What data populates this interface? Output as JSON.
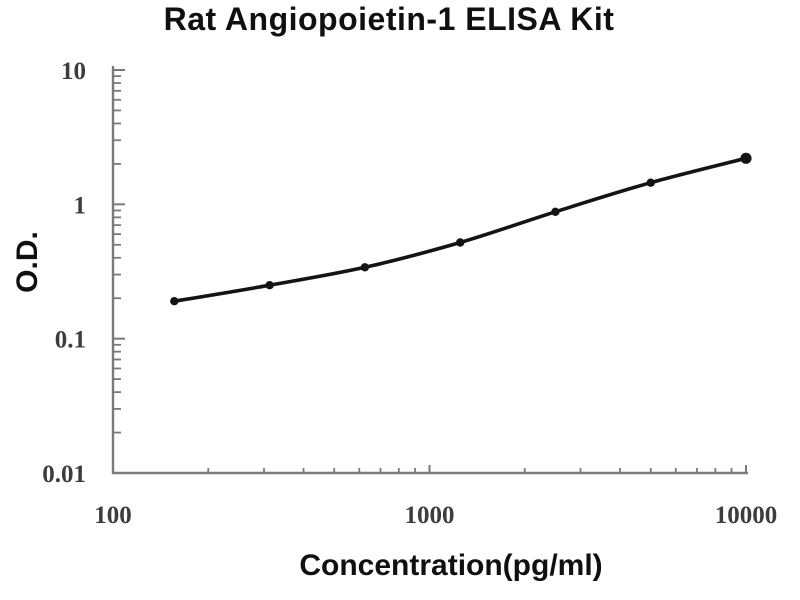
{
  "chart_data": {
    "type": "line",
    "title": "Rat Angiopoietin-1 ELISA Kit",
    "xlabel": "Concentration(pg/ml)",
    "ylabel": "O.D.",
    "xscale": "log",
    "yscale": "log",
    "xlim": [
      100,
      10000
    ],
    "ylim": [
      0.01,
      10
    ],
    "x_ticks": [
      100,
      1000,
      10000
    ],
    "x_tick_labels": [
      "100",
      "1000",
      "10000"
    ],
    "y_ticks": [
      0.01,
      0.1,
      1,
      10
    ],
    "y_tick_labels": [
      "0.01",
      "0.1",
      "1",
      "10"
    ],
    "grid": false,
    "legend": "none",
    "series": [
      {
        "name": "standard-curve",
        "x": [
          156.25,
          312.5,
          625,
          1250,
          2500,
          5000,
          10000
        ],
        "y": [
          0.19,
          0.25,
          0.34,
          0.52,
          0.88,
          1.45,
          2.2
        ],
        "marker": "filled-circle"
      }
    ],
    "colors": {
      "curve": "#141414",
      "marker": "#141414",
      "axis": "#7a7a7a",
      "tick_label": "#3d3d3d",
      "title_text": "#101010",
      "background": "#ffffff"
    }
  }
}
